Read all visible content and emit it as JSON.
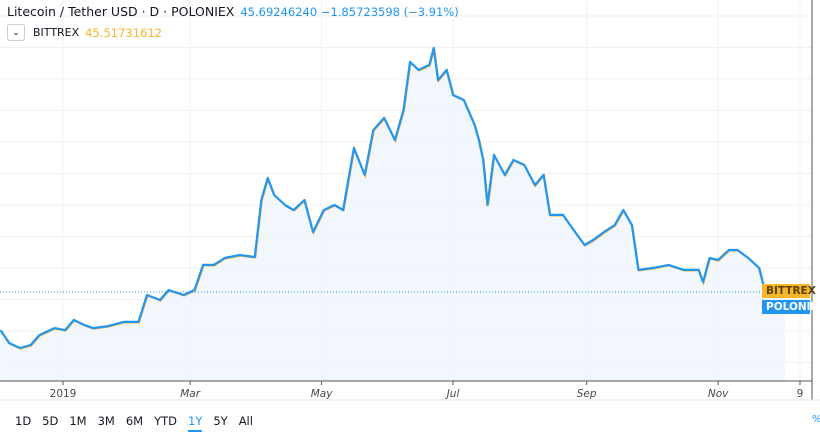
{
  "header": {
    "title": "Litecoin / Tether USD · D · POLONIEX",
    "values": "45.69246240 −1.85723598 (−3.91%)",
    "compare_symbol": "BITTREX",
    "compare_value": "45.51731612"
  },
  "colors": {
    "primary_series": "#2196f3",
    "compare_series": "#f7b52a",
    "fill": "#eef5fc"
  },
  "price_tags": {
    "bittrex": "BITTREX",
    "poloniex": "POLONIEX"
  },
  "range_buttons": [
    "1D",
    "5D",
    "1M",
    "3M",
    "6M",
    "YTD",
    "1Y",
    "5Y",
    "All"
  ],
  "active_range": "1Y",
  "percent_toggle": "%",
  "chart_data": {
    "type": "line",
    "title": "Litecoin / Tether USD · D · POLONIEX",
    "xlabel": "",
    "ylabel": "",
    "x_tick_labels": [
      "2019",
      "Mar",
      "May",
      "Jul",
      "Sep",
      "Nov",
      "9"
    ],
    "grid": true,
    "series": [
      {
        "name": "POLONIEX",
        "x": [
          "2018-12-03",
          "2018-12-07",
          "2018-12-12",
          "2018-12-17",
          "2018-12-21",
          "2018-12-28",
          "2019-01-02",
          "2019-01-06",
          "2019-01-11",
          "2019-01-15",
          "2019-01-22",
          "2019-01-29",
          "2019-02-05",
          "2019-02-09",
          "2019-02-15",
          "2019-02-19",
          "2019-02-26",
          "2019-03-03",
          "2019-03-07",
          "2019-03-12",
          "2019-03-17",
          "2019-03-24",
          "2019-03-31",
          "2019-04-03",
          "2019-04-06",
          "2019-04-09",
          "2019-04-14",
          "2019-04-18",
          "2019-04-23",
          "2019-04-27",
          "2019-05-02",
          "2019-05-07",
          "2019-05-11",
          "2019-05-16",
          "2019-05-21",
          "2019-05-25",
          "2019-05-30",
          "2019-06-04",
          "2019-06-08",
          "2019-06-11",
          "2019-06-15",
          "2019-06-20",
          "2019-06-22",
          "2019-06-24",
          "2019-06-28",
          "2019-07-01",
          "2019-07-06",
          "2019-07-11",
          "2019-07-13",
          "2019-07-15",
          "2019-07-17",
          "2019-07-20",
          "2019-07-25",
          "2019-07-29",
          "2019-08-03",
          "2019-08-08",
          "2019-08-12",
          "2019-08-15",
          "2019-08-21",
          "2019-08-26",
          "2019-08-31",
          "2019-09-04",
          "2019-09-09",
          "2019-09-14",
          "2019-09-18",
          "2019-09-22",
          "2019-09-25",
          "2019-10-02",
          "2019-10-09",
          "2019-10-16",
          "2019-10-23",
          "2019-10-25",
          "2019-10-28",
          "2019-11-01",
          "2019-11-06",
          "2019-11-10",
          "2019-11-15",
          "2019-11-20",
          "2019-11-22",
          "2019-11-27",
          "2019-12-02"
        ],
        "values": [
          30.4,
          25.2,
          23.2,
          24.4,
          28.4,
          31.2,
          30.4,
          34.5,
          32.4,
          31.2,
          32.0,
          33.7,
          33.7,
          44.5,
          42.5,
          46.5,
          44.5,
          46.5,
          56.6,
          56.6,
          59.4,
          60.6,
          59.8,
          82.7,
          91.5,
          84.7,
          80.7,
          78.7,
          82.7,
          69.8,
          78.7,
          80.7,
          78.7,
          103.6,
          92.8,
          110.8,
          115.7,
          106.8,
          118.9,
          138.2,
          135.0,
          137.0,
          143.8,
          130.9,
          135.0,
          124.9,
          122.9,
          112.9,
          106.8,
          98.8,
          80.7,
          100.8,
          92.8,
          98.8,
          96.8,
          88.7,
          92.8,
          76.7,
          76.7,
          70.6,
          64.6,
          66.6,
          69.8,
          72.6,
          78.7,
          72.6,
          54.6,
          55.4,
          56.6,
          54.6,
          54.6,
          49.7,
          59.4,
          58.6,
          62.6,
          62.6,
          59.4,
          55.4,
          48.5,
          46.5,
          45.7
        ]
      }
    ],
    "last_value": 45.6924624,
    "compare_last_value": 45.51731612
  }
}
